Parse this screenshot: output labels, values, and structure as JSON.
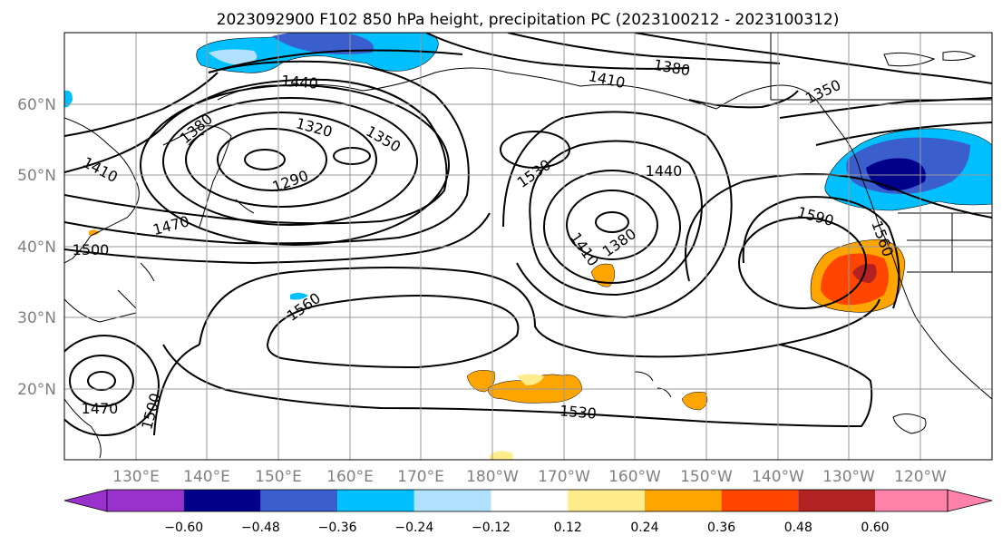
{
  "title": "2023092900 F102 850 hPa height, precipitation PC (2023100212 - 2023100312)",
  "chart_data": {
    "type": "map",
    "title": "2023092900 F102 850 hPa height, precipitation PC (2023100212 - 2023100312)",
    "lat_ticks": [
      "60°N",
      "50°N",
      "40°N",
      "30°N",
      "20°N"
    ],
    "lon_ticks": [
      "130°E",
      "140°E",
      "150°E",
      "160°E",
      "170°E",
      "180°W",
      "170°W",
      "160°W",
      "150°W",
      "140°W",
      "130°W",
      "120°W"
    ],
    "colorbar": {
      "ticks": [
        "−0.60",
        "−0.48",
        "−0.36",
        "−0.24",
        "−0.12",
        "0.12",
        "0.24",
        "0.36",
        "0.48",
        "0.60"
      ],
      "colors": [
        "#9932cc",
        "#00008b",
        "#3a5fcd",
        "#00bfff",
        "#b0e2ff",
        "#ffffff",
        "#ffec8b",
        "#ffa500",
        "#ff4500",
        "#b22222",
        "#ff82ab"
      ]
    },
    "contour_labels": [
      "1440",
      "1410",
      "1380",
      "1350",
      "1380",
      "1320",
      "1350",
      "1290",
      "1410",
      "1470",
      "1500",
      "1530",
      "1440",
      "1590",
      "1560",
      "1410",
      "1380",
      "1560",
      "1470",
      "1500",
      "1530"
    ]
  }
}
